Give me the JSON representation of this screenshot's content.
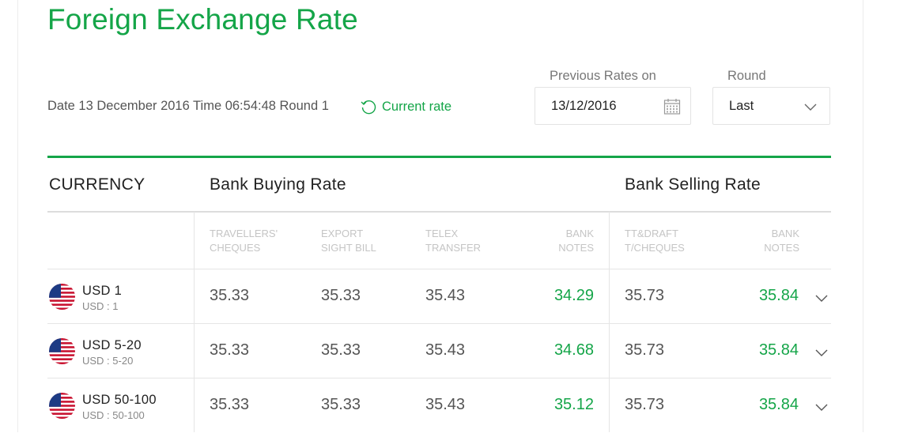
{
  "title": "Foreign Exchange Rate",
  "info_text": "Date 13 December 2016 Time 06:54:48 Round 1",
  "current_rate_label": "Current rate",
  "previous_rates_label": "Previous Rates on",
  "date_value": "13/12/2016",
  "round_label": "Round",
  "round_value": "Last",
  "colors": {
    "accent": "#14a548"
  },
  "table": {
    "header": {
      "currency": "CURRENCY",
      "buying": "Bank  Buying  Rate",
      "selling": "Bank  Selling  Rate"
    },
    "subheaders": {
      "travellers_cheques": [
        "TRAVELLERS'",
        "CHEQUES"
      ],
      "export_sight_bill": [
        "EXPORT",
        "SIGHT BILL"
      ],
      "telex_transfer": [
        "TELEX",
        "TRANSFER"
      ],
      "bank_notes_buy": [
        "BANK",
        "NOTES"
      ],
      "tt_draft": [
        "TT&DRAFT",
        "T/CHEQUES"
      ],
      "bank_notes_sell": [
        "BANK",
        "NOTES"
      ]
    },
    "rows": [
      {
        "currency": "USD  1",
        "sub": "USD : 1",
        "travellers": "35.33",
        "export": "35.33",
        "telex": "35.43",
        "notes_buy": "34.29",
        "tt": "35.73",
        "notes_sell": "35.84"
      },
      {
        "currency": "USD  5-20",
        "sub": "USD : 5-20",
        "travellers": "35.33",
        "export": "35.33",
        "telex": "35.43",
        "notes_buy": "34.68",
        "tt": "35.73",
        "notes_sell": "35.84"
      },
      {
        "currency": "USD  50-100",
        "sub": "USD : 50-100",
        "travellers": "35.33",
        "export": "35.33",
        "telex": "35.43",
        "notes_buy": "35.12",
        "tt": "35.73",
        "notes_sell": "35.84"
      }
    ]
  }
}
